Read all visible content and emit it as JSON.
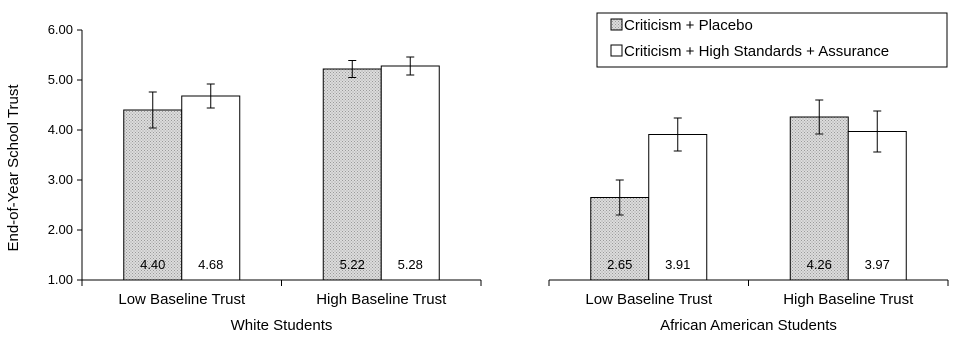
{
  "chart_data": {
    "type": "bar",
    "ylabel": "End-of-Year School Trust",
    "ylim": [
      1.0,
      6.0
    ],
    "yticks": [
      "1.00",
      "2.00",
      "3.00",
      "4.00",
      "5.00",
      "6.00"
    ],
    "series": [
      {
        "name": "Criticism + Placebo",
        "fill": "#d4d4d4"
      },
      {
        "name": "Criticism + High Standards + Assurance",
        "fill": "#ffffff"
      }
    ],
    "legend_position": "top-right",
    "panels": [
      {
        "label": "White Students",
        "groups": [
          {
            "label": "Low Baseline Trust",
            "values": [
              4.4,
              4.68
            ],
            "value_labels": [
              "4.40",
              "4.68"
            ],
            "errors": [
              0.36,
              0.24
            ]
          },
          {
            "label": "High Baseline Trust",
            "values": [
              5.22,
              5.28
            ],
            "value_labels": [
              "5.22",
              "5.28"
            ],
            "errors": [
              0.17,
              0.18
            ]
          }
        ]
      },
      {
        "label": "African American Students",
        "groups": [
          {
            "label": "Low Baseline Trust",
            "values": [
              2.65,
              3.91
            ],
            "value_labels": [
              "2.65",
              "3.91"
            ],
            "errors": [
              0.35,
              0.33
            ]
          },
          {
            "label": "High Baseline Trust",
            "values": [
              4.26,
              3.97
            ],
            "value_labels": [
              "4.26",
              "3.97"
            ],
            "errors": [
              0.34,
              0.41
            ]
          }
        ]
      }
    ]
  }
}
